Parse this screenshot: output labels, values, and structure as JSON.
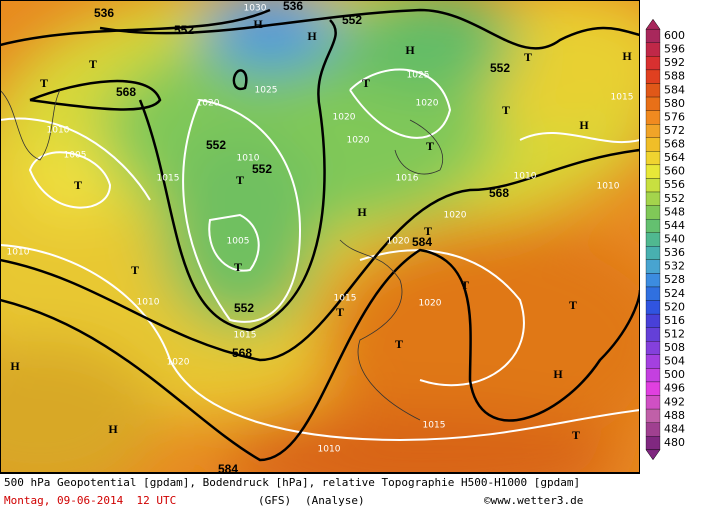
{
  "map": {
    "labels": [
      "536",
      "1030",
      "536",
      "552",
      "552",
      "H",
      "H",
      "H",
      "T",
      "T",
      "568",
      "1025",
      "T",
      "552",
      "T",
      "H",
      "1020",
      "1025",
      "1020",
      "1020",
      "T",
      "1015",
      "1010",
      "552",
      "1020",
      "H",
      "T",
      "1005",
      "1010",
      "552",
      "1015",
      "T",
      "T",
      "1016",
      "568",
      "1010",
      "1010",
      "H",
      "1020",
      "T",
      "1020",
      "584",
      "1005",
      "1010",
      "T",
      "T",
      "T",
      "1010",
      "1015",
      "1020",
      "T",
      "552",
      "T",
      "1015",
      "568",
      "T",
      "H",
      "1020",
      "H",
      "1015",
      "H",
      "T",
      "1010",
      "584"
    ]
  },
  "legend": {
    "levels": [
      {
        "value": 600,
        "color": "#a8285c"
      },
      {
        "value": 596,
        "color": "#c02848"
      },
      {
        "value": 592,
        "color": "#d83030"
      },
      {
        "value": 588,
        "color": "#e04020"
      },
      {
        "value": 584,
        "color": "#e05818"
      },
      {
        "value": 580,
        "color": "#e87018"
      },
      {
        "value": 576,
        "color": "#f08a20"
      },
      {
        "value": 572,
        "color": "#f0a428"
      },
      {
        "value": 568,
        "color": "#f0be28"
      },
      {
        "value": 564,
        "color": "#f0d430"
      },
      {
        "value": 560,
        "color": "#e8e838"
      },
      {
        "value": 556,
        "color": "#c8e040"
      },
      {
        "value": 552,
        "color": "#a4d44c"
      },
      {
        "value": 548,
        "color": "#80c858"
      },
      {
        "value": 544,
        "color": "#64c070"
      },
      {
        "value": 540,
        "color": "#50b890"
      },
      {
        "value": 536,
        "color": "#48b0b0"
      },
      {
        "value": 532,
        "color": "#48a4d0"
      },
      {
        "value": 528,
        "color": "#3c8ce0"
      },
      {
        "value": 524,
        "color": "#3070e0"
      },
      {
        "value": 520,
        "color": "#3054e0"
      },
      {
        "value": 516,
        "color": "#4840d8"
      },
      {
        "value": 512,
        "color": "#6440d8"
      },
      {
        "value": 508,
        "color": "#8440dc"
      },
      {
        "value": 504,
        "color": "#a440e0"
      },
      {
        "value": 500,
        "color": "#c440e0"
      },
      {
        "value": 496,
        "color": "#e040e0"
      },
      {
        "value": 492,
        "color": "#d050c4"
      },
      {
        "value": 488,
        "color": "#c060a8"
      },
      {
        "value": 484,
        "color": "#a04090"
      },
      {
        "value": 480,
        "color": "#802880"
      }
    ]
  },
  "footer": {
    "description": "500 hPa Geopotential [gpdam], Bodendruck [hPa], relative Topographie H500-H1000 [gpdam]",
    "date": "Montag, 09-06-2014  12 UTC",
    "model": "(GFS)",
    "run": "(Analyse)",
    "credit": "©www.wetter3.de"
  }
}
